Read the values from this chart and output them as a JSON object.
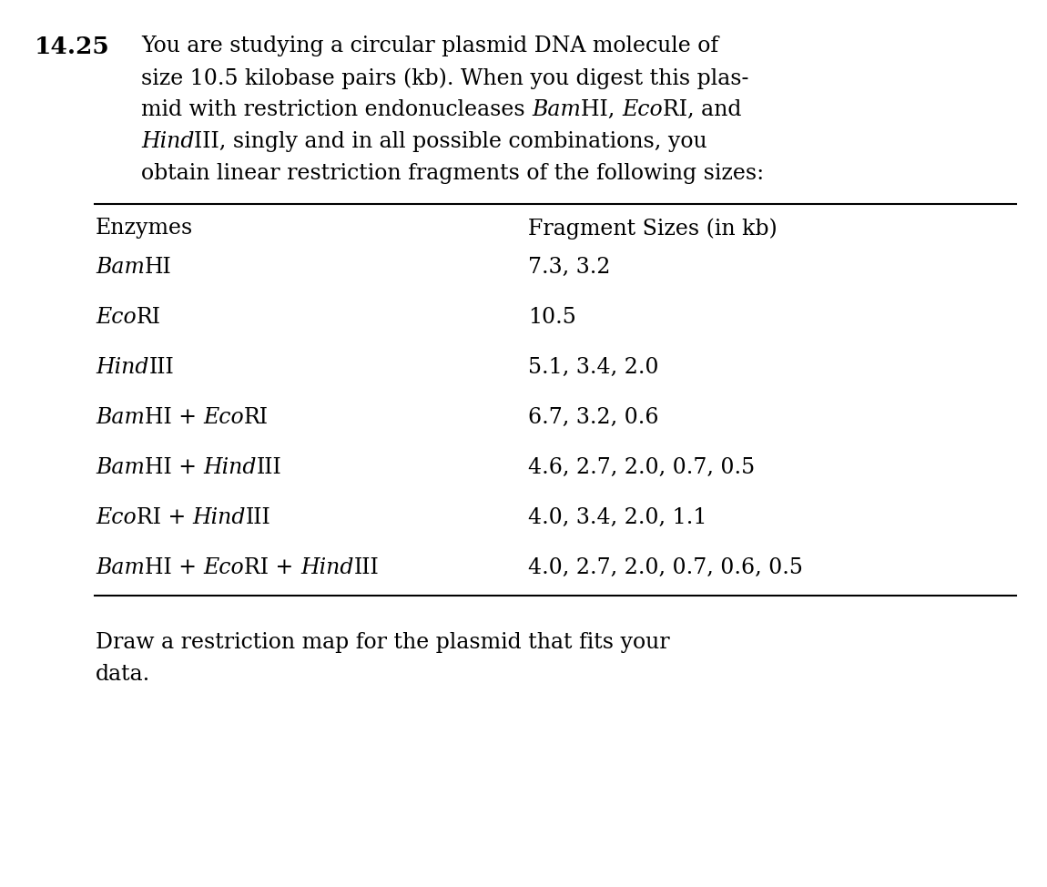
{
  "problem_number": "14.25",
  "intro_text": [
    "You are studying a circular plasmid DNA molecule of",
    "size 10.5 kilobase pairs (kb). When you digest this plas-",
    "mid with restriction endonucleases ​BamHI, EcoRI, and",
    "HindIII, singly and in all possible combinations, you",
    "obtain linear restriction fragments of the following sizes:"
  ],
  "col1_header": "Enzymes",
  "col2_header": "Fragment Sizes (in kb)",
  "rows": [
    {
      "enzyme": "BamHI",
      "fragments": "7.3, 3.2",
      "italic_parts": [
        [
          0,
          3
        ],
        []
      ],
      "enzyme_display": [
        [
          "Bam",
          true
        ],
        [
          "HI",
          false
        ]
      ]
    },
    {
      "enzyme": "EcoRI",
      "fragments": "10.5",
      "enzyme_display": [
        [
          "Eco",
          true
        ],
        [
          "RI",
          false
        ]
      ]
    },
    {
      "enzyme": "HindIII",
      "fragments": "5.1, 3.4, 2.0",
      "enzyme_display": [
        [
          "Hind",
          true
        ],
        [
          "III",
          false
        ]
      ]
    },
    {
      "enzyme": "BamHI + EcoRI",
      "fragments": "6.7, 3.2, 0.6",
      "enzyme_display": [
        [
          "Bam",
          true
        ],
        [
          "HI + ",
          false
        ],
        [
          "Eco",
          true
        ],
        [
          "RI",
          false
        ]
      ]
    },
    {
      "enzyme": "BamHI + HindIII",
      "fragments": "4.6, 2.7, 2.0, 0.7, 0.5",
      "enzyme_display": [
        [
          "Bam",
          true
        ],
        [
          "HI + ",
          false
        ],
        [
          "Hind",
          true
        ],
        [
          "III",
          false
        ]
      ]
    },
    {
      "enzyme": "EcoRI + HindIII",
      "fragments": "4.0, 3.4, 2.0, 1.1",
      "enzyme_display": [
        [
          "Eco",
          true
        ],
        [
          "RI + ",
          false
        ],
        [
          "Hind",
          true
        ],
        [
          "III",
          false
        ]
      ]
    },
    {
      "enzyme": "BamHI + EcoRI + HindIII",
      "fragments": "4.0, 2.7, 2.0, 0.7, 0.6, 0.5",
      "enzyme_display": [
        [
          "Bam",
          true
        ],
        [
          "HI + ",
          false
        ],
        [
          "Eco",
          true
        ],
        [
          "RI + ",
          false
        ],
        [
          "Hind",
          true
        ],
        [
          "III",
          false
        ]
      ]
    }
  ],
  "footer_text": [
    "Draw a restriction map for the plasmid that fits your",
    "data."
  ],
  "bg_color": "#ffffff",
  "text_color": "#000000",
  "font_size_body": 17,
  "font_size_table": 17,
  "font_size_number": 19
}
